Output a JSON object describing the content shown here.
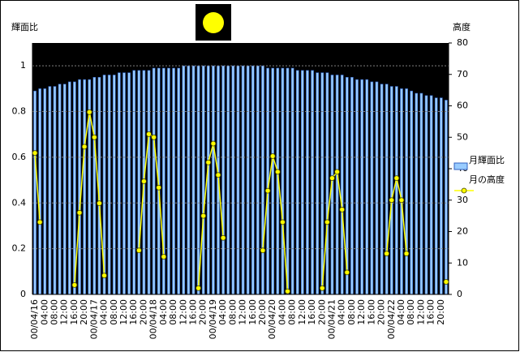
{
  "chart_data": {
    "type": "bar",
    "y_label": "輝面比",
    "y2_label": "高度",
    "categories": [
      "00/04/16",
      null,
      "04:00",
      null,
      "08:00",
      null,
      "12:00",
      null,
      "16:00",
      null,
      "20:00",
      null,
      "00/04/17",
      null,
      "04:00",
      null,
      "08:00",
      null,
      "12:00",
      null,
      "16:00",
      null,
      "20:00",
      null,
      "00/04/18",
      null,
      "04:00",
      null,
      "08:00",
      null,
      "12:00",
      null,
      "16:00",
      null,
      "20:00",
      null,
      "00/04/19",
      null,
      "04:00",
      null,
      "08:00",
      null,
      "12:00",
      null,
      "16:00",
      null,
      "20:00",
      null,
      "00/04/20",
      null,
      "04:00",
      null,
      "08:00",
      null,
      "12:00",
      null,
      "16:00",
      null,
      "20:00",
      null,
      "00/04/21",
      null,
      "04:00",
      null,
      "08:00",
      null,
      "12:00",
      null,
      "16:00",
      null,
      "20:00",
      null,
      "00/04/22",
      null,
      "04:00",
      null,
      "08:00",
      null,
      "12:00",
      null,
      "16:00",
      null,
      "20:00",
      null
    ],
    "series": [
      {
        "name": "月輝面比",
        "type": "bar",
        "color": "#99ccff",
        "values": [
          0.89,
          0.9,
          0.9,
          0.91,
          0.91,
          0.92,
          0.92,
          0.93,
          0.93,
          0.94,
          0.94,
          0.94,
          0.95,
          0.95,
          0.96,
          0.96,
          0.96,
          0.97,
          0.97,
          0.97,
          0.98,
          0.98,
          0.98,
          0.98,
          0.99,
          0.99,
          0.99,
          0.99,
          0.99,
          0.99,
          1,
          1,
          1,
          1,
          1,
          1,
          1,
          1,
          1,
          1,
          1,
          1,
          1,
          1,
          1,
          1,
          1,
          0.99,
          0.99,
          0.99,
          0.99,
          0.99,
          0.99,
          0.98,
          0.98,
          0.98,
          0.98,
          0.97,
          0.97,
          0.97,
          0.96,
          0.96,
          0.96,
          0.95,
          0.95,
          0.94,
          0.94,
          0.94,
          0.93,
          0.93,
          0.92,
          0.92,
          0.91,
          0.91,
          0.9,
          0.9,
          0.89,
          0.88,
          0.88,
          0.87,
          0.87,
          0.86,
          0.86,
          0.85
        ]
      },
      {
        "name": "月の高度",
        "type": "line",
        "axis": "y2",
        "color": "#ffff00",
        "values": [
          45,
          23,
          null,
          null,
          null,
          null,
          null,
          null,
          3,
          26,
          47,
          58,
          50,
          29,
          6,
          null,
          null,
          null,
          null,
          null,
          null,
          14,
          36,
          51,
          50,
          34,
          12,
          null,
          null,
          null,
          null,
          null,
          null,
          2,
          25,
          42,
          48,
          38,
          18,
          null,
          null,
          null,
          null,
          null,
          null,
          null,
          14,
          33,
          44,
          39,
          23,
          1,
          null,
          null,
          null,
          null,
          null,
          null,
          2,
          23,
          37,
          39,
          27,
          7,
          null,
          null,
          null,
          null,
          null,
          null,
          null,
          13,
          30,
          37,
          30,
          13,
          null,
          null,
          null,
          null,
          null,
          null,
          null,
          4
        ]
      }
    ],
    "ylim": [
      0,
      1.1
    ],
    "yticks": [
      0,
      0.2,
      0.4,
      0.6,
      0.8,
      1
    ],
    "y2lim": [
      0,
      80
    ],
    "y2ticks": [
      0,
      10,
      20,
      30,
      40,
      50,
      60,
      70,
      80
    ],
    "grid": true,
    "legend": "right"
  }
}
